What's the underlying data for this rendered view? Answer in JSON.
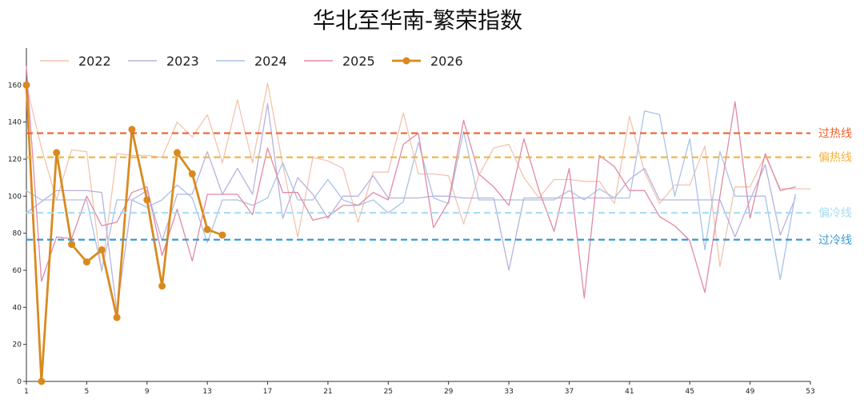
{
  "chart_data": {
    "type": "line",
    "title": "华北至华南-繁荣指数",
    "xlim": [
      1,
      53
    ],
    "ylim": [
      0,
      180
    ],
    "xticks": [
      1,
      5,
      9,
      13,
      17,
      21,
      25,
      29,
      33,
      37,
      41,
      45,
      49,
      53
    ],
    "yticks": [
      0,
      20,
      40,
      60,
      80,
      100,
      120,
      140,
      160
    ],
    "grid": false,
    "legend_position": "top-left",
    "reference_lines": [
      {
        "label": "过热线",
        "y": 134,
        "color": "#f0602a"
      },
      {
        "label": "偏热线",
        "y": 121,
        "color": "#f2b33d"
      },
      {
        "label": "偏冷线",
        "y": 91,
        "color": "#a6dcf0"
      },
      {
        "label": "过冷线",
        "y": 76.5,
        "color": "#3a9ad9"
      }
    ],
    "series": [
      {
        "name": "2022",
        "color": "#f2c4b0",
        "width": 1.3,
        "markers": false,
        "x": [
          1,
          2,
          3,
          4,
          5,
          6,
          7,
          8,
          9,
          10,
          11,
          12,
          13,
          14,
          15,
          16,
          17,
          18,
          19,
          20,
          21,
          22,
          23,
          24,
          25,
          26,
          27,
          28,
          29,
          30,
          31,
          32,
          33,
          34,
          35,
          36,
          37,
          38,
          39,
          40,
          41,
          42,
          43,
          44,
          45,
          46,
          47,
          48,
          49,
          50,
          51,
          52,
          53
        ],
        "y": [
          160,
          126,
          98,
          125,
          124,
          59,
          123,
          122,
          122,
          121,
          140,
          132,
          144,
          118,
          152,
          118,
          161,
          117,
          78,
          121,
          119,
          115,
          86,
          113,
          113,
          145,
          112,
          112,
          111,
          85,
          111,
          126,
          128,
          110,
          99,
          109,
          109,
          108,
          108,
          96,
          143,
          113,
          96,
          106,
          106,
          127,
          62,
          105,
          105,
          122,
          104,
          104,
          104
        ]
      },
      {
        "name": "2023",
        "color": "#b8b2de",
        "width": 1.3,
        "markers": false,
        "x": [
          1,
          2,
          3,
          4,
          5,
          6,
          7,
          8,
          9,
          10,
          11,
          12,
          13,
          14,
          15,
          16,
          17,
          18,
          19,
          20,
          21,
          22,
          23,
          24,
          25,
          26,
          27,
          28,
          29,
          30,
          31,
          32,
          33,
          34,
          35,
          36,
          37,
          38,
          39,
          40,
          41,
          42,
          43,
          44,
          45,
          46,
          47,
          48,
          49,
          50,
          51,
          52
        ],
        "y": [
          91,
          97,
          103,
          103,
          103,
          102,
          38,
          98,
          103,
          76,
          101,
          101,
          124,
          101,
          115,
          101,
          150,
          88,
          110,
          101,
          88,
          100,
          100,
          111,
          99,
          99,
          99,
          100,
          100,
          99,
          99,
          99,
          60,
          99,
          99,
          99,
          99,
          99,
          99,
          99,
          109,
          115,
          98,
          98,
          98,
          98,
          98,
          78,
          98,
          117,
          79,
          99
        ]
      },
      {
        "name": "2024",
        "color": "#aac2e8",
        "width": 1.3,
        "markers": false,
        "x": [
          1,
          2,
          3,
          4,
          5,
          6,
          7,
          8,
          9,
          10,
          11,
          12,
          13,
          14,
          15,
          16,
          17,
          18,
          19,
          20,
          21,
          22,
          23,
          24,
          25,
          26,
          27,
          28,
          29,
          30,
          31,
          32,
          33,
          34,
          35,
          36,
          37,
          38,
          39,
          40,
          41,
          42,
          43,
          44,
          45,
          46,
          47,
          48,
          49,
          50,
          51,
          52
        ],
        "y": [
          103,
          98,
          98,
          98,
          98,
          60,
          98,
          98,
          94,
          98,
          106,
          99,
          75,
          98,
          98,
          95,
          99,
          118,
          98,
          98,
          109,
          98,
          95,
          98,
          91,
          97,
          129,
          99,
          96,
          135,
          98,
          98,
          98,
          98,
          98,
          98,
          103,
          98,
          104,
          99,
          99,
          146,
          144,
          100,
          131,
          71,
          124,
          100,
          100,
          100,
          55,
          101
        ]
      },
      {
        "name": "2025",
        "color": "#e08aa6",
        "width": 1.3,
        "markers": false,
        "x": [
          1,
          2,
          3,
          4,
          5,
          6,
          7,
          8,
          9,
          10,
          11,
          12,
          13,
          14,
          15,
          16,
          17,
          18,
          19,
          20,
          21,
          22,
          23,
          24,
          25,
          26,
          27,
          28,
          29,
          30,
          31,
          32,
          33,
          34,
          35,
          36,
          37,
          38,
          39,
          40,
          41,
          42,
          43,
          44,
          45,
          46,
          47,
          48,
          49,
          50,
          51,
          52
        ],
        "y": [
          170,
          54,
          78,
          77,
          100,
          84,
          86,
          102,
          105,
          68,
          93,
          65,
          101,
          101,
          101,
          90,
          126,
          102,
          102,
          87,
          89,
          95,
          95,
          102,
          98,
          128,
          134,
          83,
          97,
          141,
          112,
          105,
          95,
          131,
          103,
          81,
          115,
          45,
          122,
          116,
          103,
          103,
          89,
          84,
          76,
          48,
          100,
          151,
          88,
          123,
          103,
          105
        ]
      },
      {
        "name": "2026",
        "color": "#d98a1e",
        "width": 2.8,
        "markers": true,
        "x": [
          1,
          2,
          3,
          4,
          5,
          6,
          7,
          8,
          9,
          10,
          11,
          12,
          13,
          14
        ],
        "y": [
          160,
          0,
          123.5,
          74,
          64.5,
          71,
          34.5,
          136,
          98,
          51.5,
          123.5,
          112,
          82,
          79
        ]
      }
    ]
  }
}
